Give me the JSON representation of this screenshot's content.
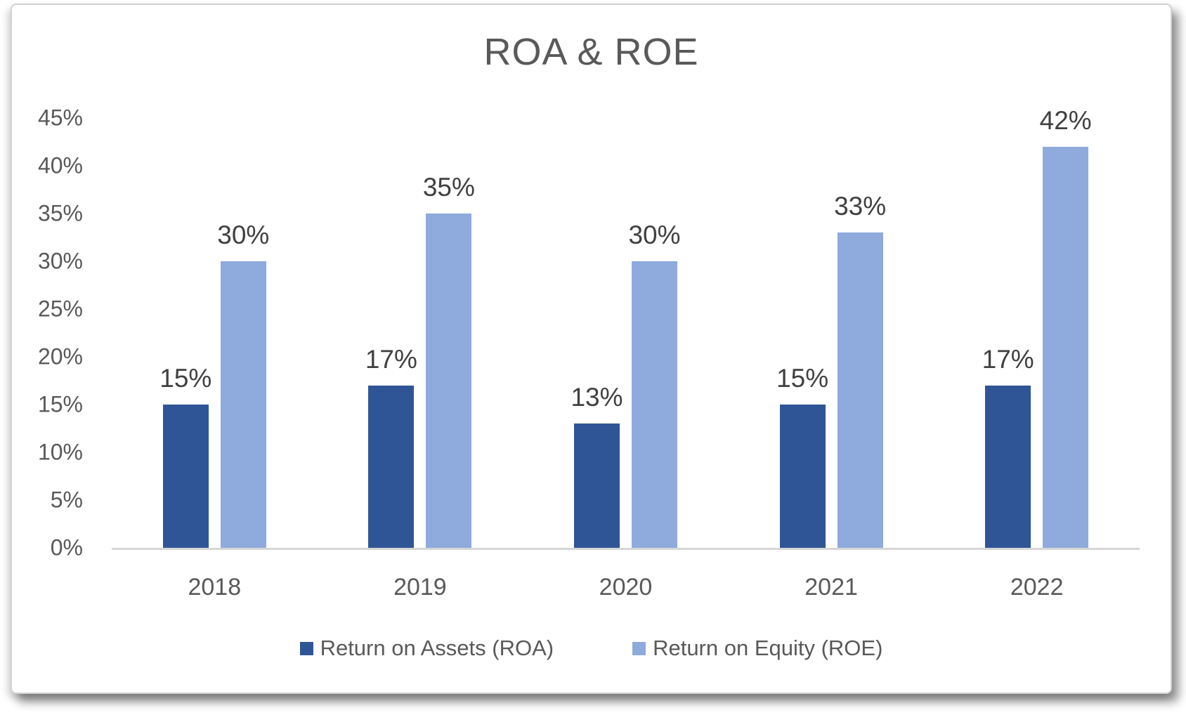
{
  "title": "ROA & ROE",
  "colors": {
    "roa_bar": "#2F5597",
    "roe_bar": "#8FAADC",
    "title_text": "#595959",
    "axis_text": "#595959",
    "data_label_text": "#404040",
    "axis_line": "#D6D6D6",
    "card_border": "#D2D2D2",
    "background": "#FFFFFF"
  },
  "chart_data": {
    "type": "bar",
    "title": "ROA & ROE",
    "categories": [
      "2018",
      "2019",
      "2020",
      "2021",
      "2022"
    ],
    "series": [
      {
        "name": "Return on Assets (ROA)",
        "color": "#2F5597",
        "values": [
          15,
          17,
          13,
          15,
          17
        ],
        "labels": [
          "15%",
          "17%",
          "13%",
          "15%",
          "17%"
        ]
      },
      {
        "name": "Return on Equity (ROE)",
        "color": "#8FAADC",
        "values": [
          30,
          35,
          30,
          33,
          42
        ],
        "labels": [
          "30%",
          "35%",
          "30%",
          "33%",
          "42%"
        ]
      }
    ],
    "value_suffix": "%",
    "ylim": [
      0,
      45
    ],
    "ytick_step": 5,
    "ytick_labels": [
      "0%",
      "5%",
      "10%",
      "15%",
      "20%",
      "25%",
      "30%",
      "35%",
      "40%",
      "45%"
    ],
    "xlabel": "",
    "ylabel": "",
    "grid": false,
    "data_labels": true,
    "legend_position": "bottom"
  }
}
